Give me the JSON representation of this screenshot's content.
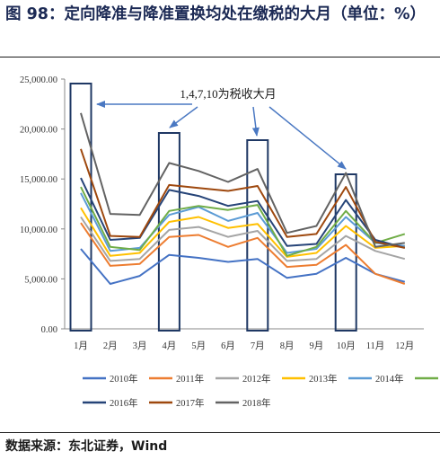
{
  "title": "图 98：定向降准与降准置换均处在缴税的大月（单位：%）",
  "source": "数据来源：东北证券，Wind",
  "chart_data": {
    "type": "line",
    "title": "",
    "xlabel": "",
    "ylabel": "",
    "ylim": [
      0,
      25000
    ],
    "yticks": [
      "0.00",
      "5,000.00",
      "10,000.00",
      "15,000.00",
      "20,000.00",
      "25,000.00"
    ],
    "categories": [
      "1月",
      "2月",
      "3月",
      "4月",
      "5月",
      "6月",
      "7月",
      "8月",
      "9月",
      "10月",
      "11月",
      "12月"
    ],
    "series": [
      {
        "name": "2010年",
        "color": "#4472c4",
        "values": [
          8000,
          4500,
          5300,
          7400,
          7100,
          6700,
          7000,
          5100,
          5500,
          7100,
          5500,
          4700
        ]
      },
      {
        "name": "2011年",
        "color": "#ed7d31",
        "values": [
          10600,
          6300,
          6500,
          9200,
          9400,
          8200,
          9100,
          6200,
          6400,
          8400,
          5500,
          4500
        ]
      },
      {
        "name": "2012年",
        "color": "#a5a5a5",
        "values": [
          11200,
          6800,
          7000,
          9900,
          10200,
          9200,
          9800,
          6800,
          7000,
          9300,
          7800,
          7000
        ]
      },
      {
        "name": "2013年",
        "color": "#ffc000",
        "values": [
          12100,
          7300,
          7600,
          10700,
          11200,
          10100,
          10500,
          7200,
          7600,
          10300,
          8100,
          8300
        ]
      },
      {
        "name": "2014年",
        "color": "#5b9bd5",
        "values": [
          13600,
          7800,
          8100,
          11400,
          12200,
          10800,
          11600,
          7600,
          8000,
          11200,
          8600,
          8300
        ]
      },
      {
        "name": "2015年",
        "color": "#70ad47",
        "values": [
          14200,
          8200,
          7900,
          11800,
          12300,
          11900,
          12400,
          7300,
          8200,
          11800,
          8600,
          9500
        ]
      },
      {
        "name": "2016年",
        "color": "#264478",
        "values": [
          15100,
          8900,
          9100,
          13900,
          13300,
          12300,
          12800,
          8300,
          8500,
          12900,
          8900,
          8100
        ]
      },
      {
        "name": "2017年",
        "color": "#9e480e",
        "values": [
          18000,
          9300,
          9200,
          14400,
          14100,
          13800,
          14300,
          9200,
          9500,
          14200,
          8700,
          8100
        ]
      },
      {
        "name": "2018年",
        "color": "#636363",
        "values": [
          21600,
          11500,
          11400,
          16600,
          15800,
          14700,
          16000,
          9600,
          10300,
          15600,
          8200,
          8600
        ]
      }
    ],
    "highlighted_months": [
      "1月",
      "4月",
      "7月",
      "10月"
    ],
    "annotation": "1,4,7,10为税收大月",
    "grid": false,
    "legend_position": "bottom"
  }
}
